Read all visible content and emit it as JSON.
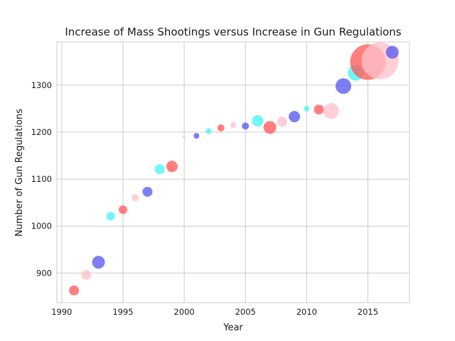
{
  "chart_data": {
    "type": "scatter",
    "title": "Increase of Mass Shootings versus Increase in Gun Regulations",
    "xlabel": "Year",
    "ylabel": "Number of Gun Regulations",
    "xlim": [
      1989.6,
      2018.4
    ],
    "ylim": [
      837,
      1392
    ],
    "x_ticks": [
      1990,
      1995,
      2000,
      2005,
      2010,
      2015
    ],
    "y_ticks": [
      900,
      1000,
      1100,
      1200,
      1300
    ],
    "grid": true,
    "legend": "none",
    "marker_size_note": "marker size varies per point",
    "points": [
      {
        "x": 1991,
        "y": 863,
        "size": 7,
        "color": "#ff5a5a"
      },
      {
        "x": 1992,
        "y": 896,
        "size": 7,
        "color": "#ffc0cb"
      },
      {
        "x": 1993,
        "y": 923,
        "size": 9,
        "color": "#5a5af0"
      },
      {
        "x": 1994,
        "y": 1021,
        "size": 6,
        "color": "#48f5f5"
      },
      {
        "x": 1995,
        "y": 1035,
        "size": 6,
        "color": "#ff5a5a"
      },
      {
        "x": 1996,
        "y": 1060,
        "size": 5,
        "color": "#ffc0cb"
      },
      {
        "x": 1997,
        "y": 1073,
        "size": 7,
        "color": "#5a5af0"
      },
      {
        "x": 1998,
        "y": 1121,
        "size": 7,
        "color": "#48f5f5"
      },
      {
        "x": 1999,
        "y": 1127,
        "size": 8,
        "color": "#ff5a5a"
      },
      {
        "x": 2000,
        "y": 1190,
        "size": 2,
        "color": "#ffc0cb"
      },
      {
        "x": 2001,
        "y": 1192,
        "size": 4,
        "color": "#5a5af0"
      },
      {
        "x": 2002,
        "y": 1202,
        "size": 4,
        "color": "#48f5f5"
      },
      {
        "x": 2003,
        "y": 1209,
        "size": 5,
        "color": "#ff5a5a"
      },
      {
        "x": 2004,
        "y": 1215,
        "size": 4,
        "color": "#ffc0cb"
      },
      {
        "x": 2005,
        "y": 1213,
        "size": 5,
        "color": "#5a5af0"
      },
      {
        "x": 2006,
        "y": 1224,
        "size": 8,
        "color": "#48f5f5"
      },
      {
        "x": 2007,
        "y": 1210,
        "size": 9,
        "color": "#ff5a5a"
      },
      {
        "x": 2008,
        "y": 1222,
        "size": 7,
        "color": "#ffc0cb"
      },
      {
        "x": 2009,
        "y": 1233,
        "size": 8,
        "color": "#5a5af0"
      },
      {
        "x": 2010,
        "y": 1250,
        "size": 4,
        "color": "#48f5f5"
      },
      {
        "x": 2011,
        "y": 1248,
        "size": 7,
        "color": "#ff5a5a"
      },
      {
        "x": 2012,
        "y": 1245,
        "size": 11,
        "color": "#ffc0cb"
      },
      {
        "x": 2013,
        "y": 1298,
        "size": 11,
        "color": "#5a5af0"
      },
      {
        "x": 2014,
        "y": 1326,
        "size": 11,
        "color": "#48f5f5"
      },
      {
        "x": 2015,
        "y": 1349,
        "size": 25,
        "color": "#ff5a5a"
      },
      {
        "x": 2016,
        "y": 1352,
        "size": 26,
        "color": "#ffc0cb"
      },
      {
        "x": 2017,
        "y": 1370,
        "size": 9,
        "color": "#5a5af0"
      }
    ]
  }
}
